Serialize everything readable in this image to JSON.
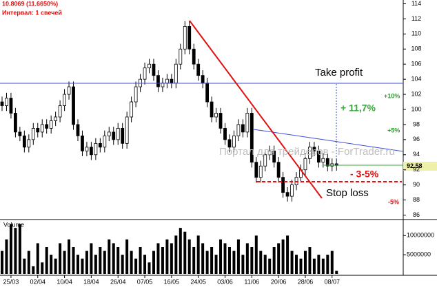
{
  "chart_data": {
    "type": "candlestick",
    "header": "10.8069 (11.6650%)",
    "interval": "Интервал: 1 свечей",
    "categories": [
      null,
      null,
      "25/03",
      null,
      null,
      null,
      null,
      null,
      "02/04",
      null,
      null,
      null,
      null,
      null,
      "10/04",
      null,
      null,
      null,
      null,
      null,
      "18/04",
      null,
      null,
      null,
      null,
      null,
      "26/04",
      null,
      null,
      null,
      null,
      null,
      "07/05",
      null,
      null,
      null,
      null,
      null,
      "16/05",
      null,
      null,
      null,
      null,
      null,
      "24/05",
      null,
      null,
      null,
      null,
      null,
      "03/06",
      null,
      null,
      null,
      null,
      null,
      "11/06",
      null,
      null,
      null,
      null,
      null,
      "20/06",
      null,
      null,
      null,
      null,
      null,
      "28/06",
      null,
      null,
      null,
      null,
      null,
      "08/07",
      null
    ],
    "open": [
      101,
      100.5,
      101.5,
      99.5,
      97,
      96.5,
      95,
      96,
      97.5,
      97,
      98,
      97.5,
      98.5,
      99,
      100.5,
      102,
      103,
      98,
      96.5,
      94.5,
      95,
      94,
      95.5,
      95,
      96.5,
      97,
      96,
      97.5,
      95.5,
      99,
      101,
      103,
      104,
      105.5,
      106,
      104.5,
      103,
      103.5,
      104,
      103.5,
      106,
      108,
      111,
      108,
      106,
      104.5,
      103.5,
      101,
      99,
      99.5,
      97.5,
      96,
      95,
      96.5,
      98,
      97,
      99.5,
      93,
      91,
      92.5,
      94,
      94.5,
      93,
      91,
      89,
      88.5,
      90,
      91,
      92,
      93.5,
      95,
      94.5,
      93,
      93.5,
      92.5,
      92.8
    ],
    "high": [
      101.7,
      102.2,
      102.2,
      100.2,
      97.7,
      97.2,
      96.7,
      98.2,
      98.2,
      98.7,
      98.7,
      99.2,
      99.7,
      101.2,
      102.7,
      103.7,
      103.7,
      98.7,
      97.2,
      95.7,
      95.7,
      96.2,
      96.2,
      97.2,
      97.7,
      97.7,
      98.2,
      98.2,
      99.7,
      101.7,
      103.7,
      104.7,
      106.2,
      106.7,
      106.7,
      105.2,
      104.2,
      104.7,
      104.7,
      106.7,
      108.7,
      111.7,
      111.7,
      108.7,
      106.7,
      105.2,
      104.2,
      101.7,
      100.2,
      100.2,
      98.2,
      96.7,
      97.2,
      98.7,
      98.7,
      100.2,
      100.2,
      93.7,
      93.2,
      94.7,
      95.2,
      95.2,
      93.7,
      91.7,
      89.7,
      90.7,
      91.7,
      92.7,
      94.2,
      95.7,
      95.7,
      95.2,
      94.2,
      94.2,
      93.5,
      93.5
    ],
    "low": [
      99.8,
      99.8,
      98.8,
      96.3,
      95.8,
      94.3,
      94.3,
      95.3,
      96.3,
      96.3,
      96.8,
      96.8,
      97.8,
      98.3,
      99.8,
      101.3,
      97.3,
      95.8,
      93.8,
      93.8,
      93.3,
      93.3,
      94.3,
      94.3,
      95.8,
      95.3,
      95.3,
      94.8,
      94.8,
      98.3,
      100.3,
      102.3,
      103.3,
      104.8,
      103.8,
      102.3,
      102.3,
      102.8,
      102.8,
      102.8,
      105.3,
      107.3,
      107.3,
      105.3,
      103.8,
      102.8,
      100.3,
      98.3,
      98.3,
      96.8,
      95.3,
      94.3,
      94.3,
      95.8,
      96.3,
      96.3,
      92.3,
      90.3,
      90.3,
      91.8,
      93.3,
      92.3,
      90.3,
      88.3,
      87.8,
      87.8,
      89.3,
      90.3,
      91.3,
      92.8,
      93.8,
      92.3,
      92.3,
      91.8,
      91.8,
      91.88
    ],
    "close": [
      100.5,
      101.5,
      99.5,
      97,
      96.5,
      95,
      96,
      97.5,
      97,
      98,
      97.5,
      98.5,
      99,
      100.5,
      102,
      103,
      98,
      96.5,
      94.5,
      95,
      94,
      95.5,
      95,
      96.5,
      97,
      96,
      97.5,
      95.5,
      99,
      101,
      103,
      104,
      105.5,
      106,
      104.5,
      103,
      103.5,
      104,
      103.5,
      106,
      108,
      111,
      108,
      106,
      104.5,
      103.5,
      101,
      99,
      99.5,
      97.5,
      96,
      95,
      96.5,
      98,
      97,
      99.5,
      93,
      91,
      92.5,
      94,
      94.5,
      93,
      91,
      89,
      88.5,
      90,
      91,
      92,
      93.5,
      95,
      94.5,
      93,
      93.5,
      92.5,
      92.8,
      92.58
    ],
    "volume": [
      6000000,
      9000000,
      13000000,
      12000000,
      13000000,
      4000000,
      6000000,
      2000000,
      8000000,
      3000000,
      7000000,
      5000000,
      4000000,
      8000000,
      6000000,
      9000000,
      7000000,
      5000000,
      4000000,
      6000000,
      8000000,
      5000000,
      7000000,
      6000000,
      9000000,
      8000000,
      7000000,
      5000000,
      9000000,
      6000000,
      4000000,
      7000000,
      5000000,
      3000000,
      6000000,
      8000000,
      7000000,
      9000000,
      8000000,
      10000000,
      12000000,
      11000000,
      9000000,
      7000000,
      10000000,
      8000000,
      6000000,
      7000000,
      5000000,
      9000000,
      8000000,
      7000000,
      6000000,
      9000000,
      5000000,
      8000000,
      7000000,
      10000000,
      6000000,
      5000000,
      4000000,
      7000000,
      8000000,
      9000000,
      10000000,
      6000000,
      5000000,
      4000000,
      6000000,
      7000000,
      4000000,
      5000000,
      4000000,
      5000000,
      6000000,
      800000
    ],
    "ylim": [
      85.5,
      114.5
    ],
    "yticks": [
      86,
      88,
      90,
      92,
      94,
      96,
      98,
      100,
      102,
      104,
      106,
      108,
      110,
      112,
      114
    ],
    "volume_title": "Volume",
    "volume_ylim": [
      0,
      14000000
    ],
    "volume_yticks": [
      5000000,
      10000000
    ],
    "annotations": {
      "take_profit": "Take profit",
      "target": "+ 11,7%",
      "plus10": "+10%",
      "plus5": "+5%",
      "risk": "- 3-5%",
      "stop_loss": "Stop loss",
      "minus5": "-5%",
      "watermark": "Портал для трейдеров - ForTrader.ru"
    }
  }
}
